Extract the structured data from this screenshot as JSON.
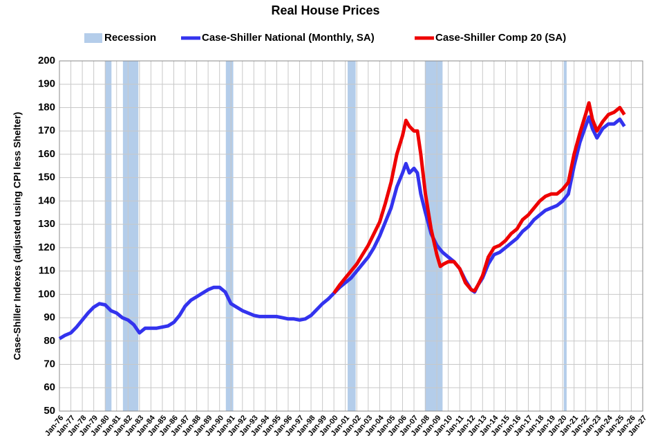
{
  "chart_data": {
    "type": "line",
    "title": "Real House Prices",
    "y_label": "Case-Shiller Indexes (adjusted using CPI less Shelter)",
    "xlim": [
      1976,
      2027
    ],
    "ylim": [
      50,
      200
    ],
    "yticks": [
      50,
      60,
      70,
      80,
      90,
      100,
      110,
      120,
      130,
      140,
      150,
      160,
      170,
      180,
      190,
      200
    ],
    "xticks": [
      {
        "value": 1976,
        "label": "Jan-76"
      },
      {
        "value": 1977,
        "label": "Jan-77"
      },
      {
        "value": 1978,
        "label": "Jan-78"
      },
      {
        "value": 1979,
        "label": "Jan-79"
      },
      {
        "value": 1980,
        "label": "Jan-80"
      },
      {
        "value": 1981,
        "label": "Jan-81"
      },
      {
        "value": 1982,
        "label": "Jan-82"
      },
      {
        "value": 1983,
        "label": "Jan-83"
      },
      {
        "value": 1984,
        "label": "Jan-84"
      },
      {
        "value": 1985,
        "label": "Jan-85"
      },
      {
        "value": 1986,
        "label": "Jan-86"
      },
      {
        "value": 1987,
        "label": "Jan-87"
      },
      {
        "value": 1988,
        "label": "Jan-88"
      },
      {
        "value": 1989,
        "label": "Jan-89"
      },
      {
        "value": 1990,
        "label": "Jan-90"
      },
      {
        "value": 1991,
        "label": "Jan-91"
      },
      {
        "value": 1992,
        "label": "Jan-92"
      },
      {
        "value": 1993,
        "label": "Jan-93"
      },
      {
        "value": 1994,
        "label": "Jan-94"
      },
      {
        "value": 1995,
        "label": "Jan-95"
      },
      {
        "value": 1996,
        "label": "Jan-96"
      },
      {
        "value": 1997,
        "label": "Jan-97"
      },
      {
        "value": 1998,
        "label": "Jan-98"
      },
      {
        "value": 1999,
        "label": "Jan-99"
      },
      {
        "value": 2000,
        "label": "Jan-00"
      },
      {
        "value": 2001,
        "label": "Jan-01"
      },
      {
        "value": 2002,
        "label": "Jan-02"
      },
      {
        "value": 2003,
        "label": "Jan-03"
      },
      {
        "value": 2004,
        "label": "Jan-04"
      },
      {
        "value": 2005,
        "label": "Jan-05"
      },
      {
        "value": 2006,
        "label": "Jan-06"
      },
      {
        "value": 2007,
        "label": "Jan-07"
      },
      {
        "value": 2008,
        "label": "Jan-08"
      },
      {
        "value": 2009,
        "label": "Jan-09"
      },
      {
        "value": 2010,
        "label": "Jan-10"
      },
      {
        "value": 2011,
        "label": "Jan-11"
      },
      {
        "value": 2012,
        "label": "Jan-12"
      },
      {
        "value": 2013,
        "label": "Jan-13"
      },
      {
        "value": 2014,
        "label": "Jan-14"
      },
      {
        "value": 2015,
        "label": "Jan-15"
      },
      {
        "value": 2016,
        "label": "Jan-16"
      },
      {
        "value": 2017,
        "label": "Jan-17"
      },
      {
        "value": 2018,
        "label": "Jan-18"
      },
      {
        "value": 2019,
        "label": "Jan-19"
      },
      {
        "value": 2020,
        "label": "Jan-20"
      },
      {
        "value": 2021,
        "label": "Jan-21"
      },
      {
        "value": 2022,
        "label": "Jan-22"
      },
      {
        "value": 2023,
        "label": "Jan-23"
      },
      {
        "value": 2024,
        "label": "Jan-24"
      },
      {
        "value": 2025,
        "label": "Jan-25"
      },
      {
        "value": 2026,
        "label": "Jan-26"
      },
      {
        "value": 2027,
        "label": "Jan-27"
      }
    ],
    "grid": true,
    "recessions": {
      "name": "Recession",
      "color": "#b4cdea",
      "periods": [
        [
          1980.0,
          1980.55
        ],
        [
          1981.55,
          1982.9
        ],
        [
          1990.55,
          1991.2
        ],
        [
          2001.2,
          2001.9
        ],
        [
          2007.95,
          2009.5
        ],
        [
          2020.1,
          2020.35
        ]
      ]
    },
    "series": [
      {
        "name": "Case-Shiller National (Monthly, SA)",
        "color": "#3333ee",
        "x": [
          1976,
          1976.5,
          1977,
          1977.5,
          1978,
          1978.5,
          1979,
          1979.5,
          1980,
          1980.5,
          1981,
          1981.5,
          1982,
          1982.5,
          1983,
          1983.5,
          1984,
          1984.5,
          1985,
          1985.5,
          1986,
          1986.5,
          1987,
          1987.5,
          1988,
          1988.5,
          1989,
          1989.5,
          1990,
          1990.5,
          1991,
          1991.5,
          1992,
          1992.5,
          1993,
          1993.5,
          1994,
          1994.5,
          1995,
          1995.5,
          1996,
          1996.5,
          1997,
          1997.5,
          1998,
          1998.5,
          1999,
          1999.5,
          2000,
          2000.5,
          2001,
          2001.5,
          2002,
          2002.5,
          2003,
          2003.5,
          2004,
          2004.5,
          2005,
          2005.5,
          2006,
          2006.3,
          2006.6,
          2007,
          2007.3,
          2007.6,
          2008,
          2008.5,
          2009,
          2009.5,
          2010,
          2010.5,
          2011,
          2011.5,
          2012,
          2012.3,
          2012.6,
          2013,
          2013.5,
          2014,
          2014.5,
          2015,
          2015.5,
          2016,
          2016.5,
          2017,
          2017.5,
          2018,
          2018.5,
          2019,
          2019.5,
          2020,
          2020.5,
          2021,
          2021.5,
          2022,
          2022.3,
          2022.6,
          2023,
          2023.5,
          2024,
          2024.5,
          2025,
          2025.4
        ],
        "values": [
          81,
          82.5,
          83.5,
          86,
          89,
          92,
          94.5,
          96,
          95.5,
          93,
          92,
          90,
          89,
          87,
          83.5,
          85.5,
          85.5,
          85.5,
          86,
          86.5,
          88,
          91,
          95,
          97.5,
          99,
          100.5,
          102,
          103,
          103,
          101,
          96,
          94.5,
          93,
          92,
          91,
          90.5,
          90.5,
          90.5,
          90.5,
          90,
          89.5,
          89.5,
          89,
          89.5,
          91,
          93.5,
          96,
          98,
          100.5,
          103,
          105,
          107,
          110,
          113,
          116,
          120,
          125,
          131,
          137,
          146,
          152,
          156,
          152,
          154,
          152,
          143,
          135,
          126,
          121,
          118,
          116,
          114,
          111,
          106,
          102,
          101,
          104,
          107,
          113,
          117,
          118,
          120,
          122,
          124,
          127,
          129,
          132,
          134,
          136,
          137,
          138,
          140,
          143,
          155,
          165,
          172,
          176,
          171,
          167,
          171,
          173,
          173,
          175,
          172
        ]
      },
      {
        "name": "Case-Shiller Comp 20  (SA)",
        "color": "#ee0000",
        "x": [
          2000,
          2000.5,
          2001,
          2001.5,
          2002,
          2002.5,
          2003,
          2003.5,
          2004,
          2004.5,
          2005,
          2005.5,
          2006,
          2006.3,
          2006.6,
          2007,
          2007.3,
          2007.6,
          2008,
          2008.5,
          2009,
          2009.3,
          2009.6,
          2010,
          2010.5,
          2011,
          2011.5,
          2012,
          2012.3,
          2012.6,
          2013,
          2013.5,
          2014,
          2014.5,
          2015,
          2015.5,
          2016,
          2016.5,
          2017,
          2017.5,
          2018,
          2018.5,
          2019,
          2019.5,
          2020,
          2020.5,
          2021,
          2021.5,
          2022,
          2022.3,
          2022.6,
          2023,
          2023.5,
          2024,
          2024.5,
          2025,
          2025.4
        ],
        "values": [
          100.5,
          104,
          107,
          110,
          113,
          117,
          121,
          126,
          131,
          139,
          148,
          160,
          168,
          174.5,
          172,
          170,
          170,
          160,
          143,
          128,
          117,
          112,
          113,
          114,
          114,
          111,
          105,
          102,
          101.5,
          104,
          108,
          116,
          120,
          121,
          123,
          126,
          128,
          132,
          134,
          137,
          140,
          142,
          143,
          143,
          145,
          148,
          160,
          169,
          177,
          182,
          175,
          170,
          174,
          177,
          178,
          180,
          177
        ]
      }
    ]
  }
}
